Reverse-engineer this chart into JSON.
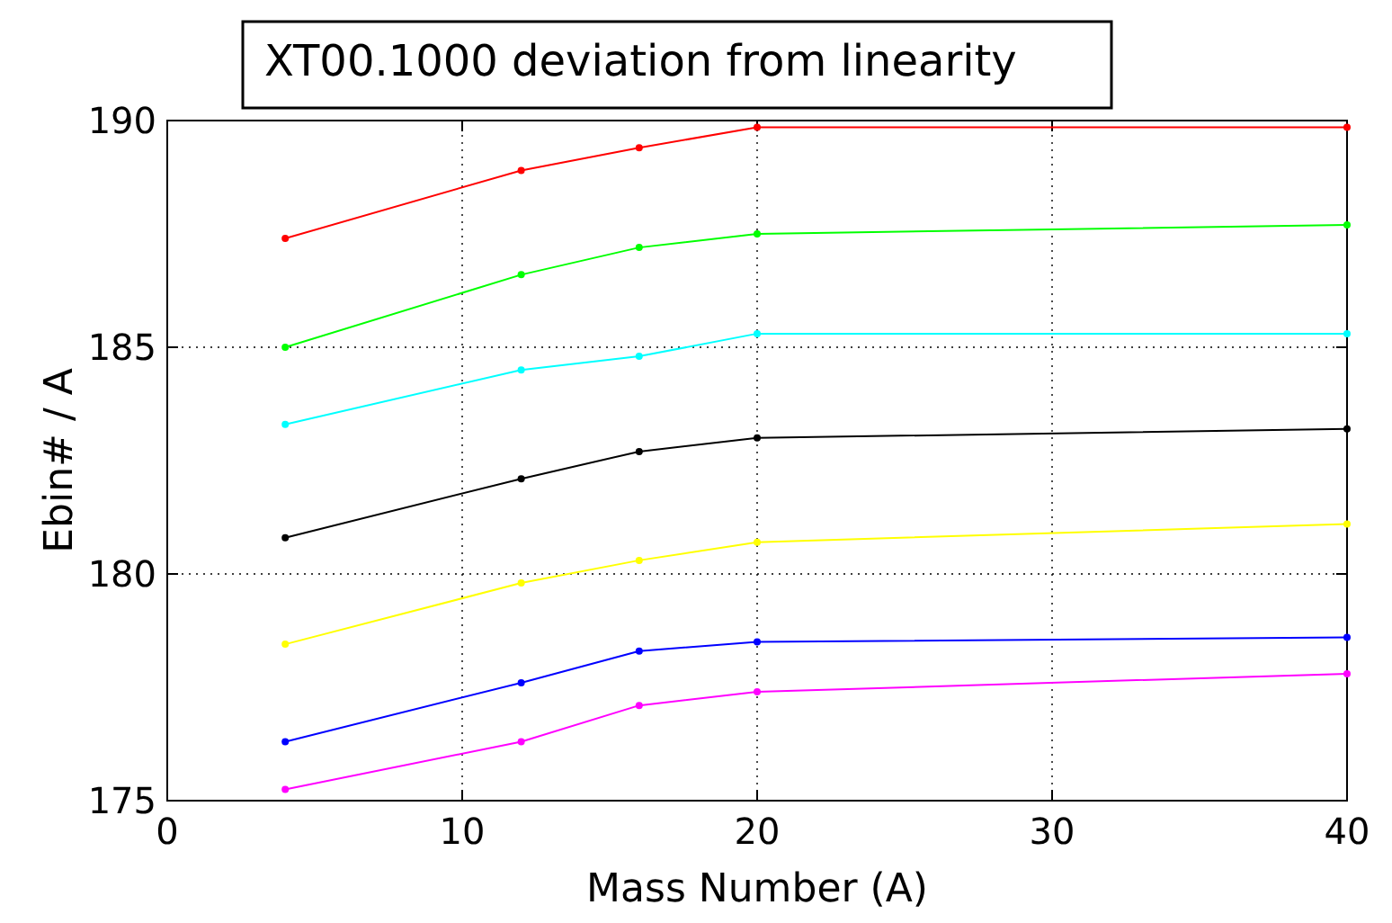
{
  "chart_data": {
    "type": "line",
    "title": "XT00.1000 deviation from linearity",
    "xlabel": "Mass Number (A)",
    "ylabel": "Ebin# / A",
    "x": [
      4,
      12,
      16,
      20,
      40
    ],
    "series": [
      {
        "color": "#ff0000",
        "values": [
          187.4,
          188.9,
          189.4,
          189.85,
          189.85
        ]
      },
      {
        "color": "#00ff00",
        "values": [
          185.0,
          186.6,
          187.2,
          187.5,
          187.7
        ]
      },
      {
        "color": "#00ffff",
        "values": [
          183.3,
          184.5,
          184.8,
          185.3,
          185.3
        ]
      },
      {
        "color": "#000000",
        "values": [
          180.8,
          182.1,
          182.7,
          183.0,
          183.2
        ]
      },
      {
        "color": "#ffff00",
        "values": [
          178.45,
          179.8,
          180.3,
          180.7,
          181.1
        ]
      },
      {
        "color": "#0000ff",
        "values": [
          176.3,
          177.6,
          178.3,
          178.5,
          178.6
        ]
      },
      {
        "color": "#ff00ff",
        "values": [
          175.25,
          176.3,
          177.1,
          177.4,
          177.8
        ]
      }
    ],
    "xlim": [
      0,
      40
    ],
    "xticks": [
      0,
      10,
      20,
      30,
      40
    ],
    "ylim": [
      175,
      190
    ],
    "yticks": [
      175,
      180,
      185,
      190
    ],
    "grid": true,
    "marker": "circle",
    "line_style": "solid"
  }
}
